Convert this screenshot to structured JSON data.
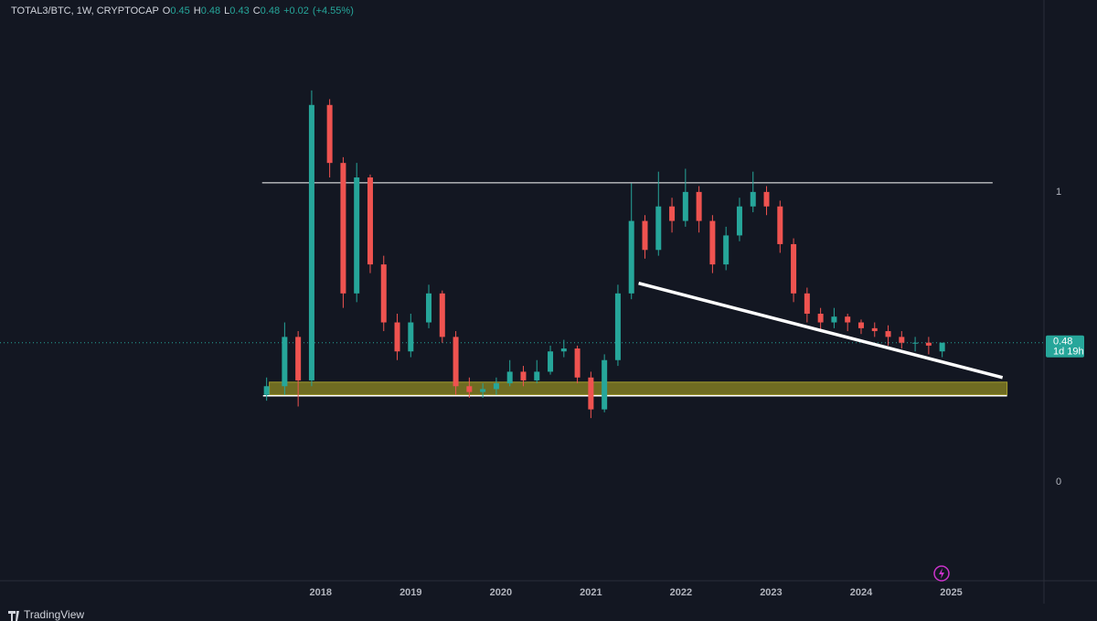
{
  "chart_data": {
    "type": "candlestick",
    "symbol": "TOTAL3/BTC, 1W, CRYPTOCAP",
    "ohlc_legend": [
      {
        "key": "O",
        "value": 0.45
      },
      {
        "key": "H",
        "value": 0.48
      },
      {
        "key": "L",
        "value": 0.43
      },
      {
        "key": "C",
        "value": 0.48
      }
    ],
    "change": {
      "value": 0.02,
      "label": "+0.02"
    },
    "change_pct": {
      "value": 4.55,
      "label": "(+4.55%)"
    },
    "up_color": "#26a69a",
    "down_color": "#ef5350",
    "x": [
      2017.4,
      2017.6,
      2017.75,
      2017.9,
      2018.1,
      2018.25,
      2018.4,
      2018.55,
      2018.7,
      2018.85,
      2019.0,
      2019.2,
      2019.35,
      2019.5,
      2019.65,
      2019.8,
      2019.95,
      2020.1,
      2020.25,
      2020.4,
      2020.55,
      2020.7,
      2020.85,
      2021.0,
      2021.15,
      2021.3,
      2021.45,
      2021.6,
      2021.75,
      2021.9,
      2022.05,
      2022.2,
      2022.35,
      2022.5,
      2022.65,
      2022.8,
      2022.95,
      2023.1,
      2023.25,
      2023.4,
      2023.55,
      2023.7,
      2023.85,
      2024.0,
      2024.15,
      2024.3,
      2024.45,
      2024.6,
      2024.75,
      2024.9
    ],
    "open": [
      0.3,
      0.33,
      0.5,
      0.35,
      1.3,
      1.1,
      0.65,
      1.05,
      0.75,
      0.55,
      0.45,
      0.55,
      0.65,
      0.5,
      0.33,
      0.31,
      0.32,
      0.34,
      0.38,
      0.35,
      0.38,
      0.45,
      0.46,
      0.36,
      0.25,
      0.42,
      0.65,
      0.9,
      0.8,
      0.95,
      0.9,
      1.0,
      0.9,
      0.75,
      0.85,
      0.95,
      1.0,
      0.95,
      0.82,
      0.65,
      0.58,
      0.55,
      0.57,
      0.55,
      0.53,
      0.52,
      0.5,
      0.48,
      0.48,
      0.45
    ],
    "high": [
      0.36,
      0.55,
      0.52,
      1.35,
      1.32,
      1.12,
      1.1,
      1.06,
      0.78,
      0.58,
      0.58,
      0.68,
      0.66,
      0.52,
      0.36,
      0.34,
      0.36,
      0.42,
      0.4,
      0.42,
      0.47,
      0.49,
      0.47,
      0.38,
      0.44,
      0.68,
      1.03,
      0.92,
      1.07,
      0.98,
      1.08,
      1.02,
      0.92,
      0.88,
      0.98,
      1.07,
      1.02,
      0.97,
      0.84,
      0.67,
      0.6,
      0.6,
      0.58,
      0.56,
      0.55,
      0.54,
      0.52,
      0.5,
      0.5,
      0.48
    ],
    "low": [
      0.28,
      0.3,
      0.26,
      0.33,
      1.05,
      0.6,
      0.62,
      0.72,
      0.52,
      0.42,
      0.43,
      0.53,
      0.48,
      0.3,
      0.29,
      0.29,
      0.3,
      0.33,
      0.33,
      0.34,
      0.37,
      0.43,
      0.34,
      0.22,
      0.24,
      0.4,
      0.63,
      0.77,
      0.78,
      0.86,
      0.88,
      0.86,
      0.72,
      0.73,
      0.83,
      0.93,
      0.92,
      0.79,
      0.62,
      0.55,
      0.52,
      0.53,
      0.52,
      0.51,
      0.5,
      0.47,
      0.46,
      0.45,
      0.44,
      0.43
    ],
    "close": [
      0.33,
      0.5,
      0.35,
      1.3,
      1.1,
      0.65,
      1.05,
      0.75,
      0.55,
      0.45,
      0.55,
      0.65,
      0.5,
      0.33,
      0.31,
      0.32,
      0.34,
      0.38,
      0.35,
      0.38,
      0.45,
      0.46,
      0.36,
      0.25,
      0.42,
      0.65,
      0.9,
      0.8,
      0.95,
      0.9,
      1.0,
      0.9,
      0.75,
      0.85,
      0.95,
      1.0,
      0.95,
      0.82,
      0.65,
      0.58,
      0.55,
      0.57,
      0.55,
      0.53,
      0.52,
      0.5,
      0.48,
      0.48,
      0.47,
      0.48
    ],
    "xlim": [
      2014.44,
      2026.03
    ],
    "xticks": [
      2018,
      2019,
      2020,
      2021,
      2022,
      2023,
      2024,
      2025
    ],
    "ylim": [
      -0.341,
      1.662
    ],
    "yticks": [
      0,
      1
    ],
    "last_price": {
      "value": 0.48,
      "label": "0.48"
    },
    "countdown": "1d 19h",
    "resistance": {
      "x": [
        2017.35,
        2025.46
      ],
      "y": 1.0315
    },
    "support_zone": {
      "x": [
        2017.43,
        2025.62
      ],
      "y": [
        0.3,
        0.344
      ],
      "color": "#7a7522"
    },
    "support_line": {
      "x": [
        2017.36,
        2025.62
      ],
      "y": 0.297
    },
    "trend_line": {
      "x": [
        2021.53,
        2025.57
      ],
      "y": [
        0.685,
        0.36
      ]
    },
    "watermark": "TradingView"
  }
}
